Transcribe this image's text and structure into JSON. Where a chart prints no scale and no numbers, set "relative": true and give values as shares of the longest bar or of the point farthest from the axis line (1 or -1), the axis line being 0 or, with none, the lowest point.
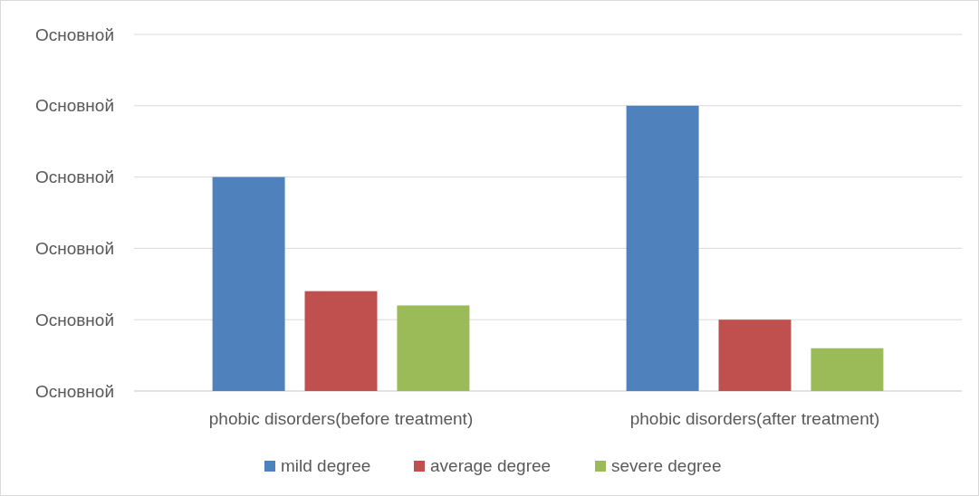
{
  "chart_data": {
    "type": "bar",
    "relative": true,
    "categories": [
      "phobic disorders(before treatment)",
      "phobic  disorders(after treatment)"
    ],
    "series": [
      {
        "name": "mild degree",
        "color": "#4f81bd",
        "values": [
          0.75,
          1
        ]
      },
      {
        "name": "average degree",
        "color": "#c0504d",
        "values": [
          0.35,
          0.25
        ]
      },
      {
        "name": "severe degree",
        "color": "#9bbb59",
        "values": [
          0.3,
          0.15
        ]
      }
    ],
    "annotations": [
      "Основной",
      "Основной",
      "Основной",
      "Основной",
      "Основной",
      "Основной"
    ],
    "grid": "y",
    "legend": "bottom"
  }
}
